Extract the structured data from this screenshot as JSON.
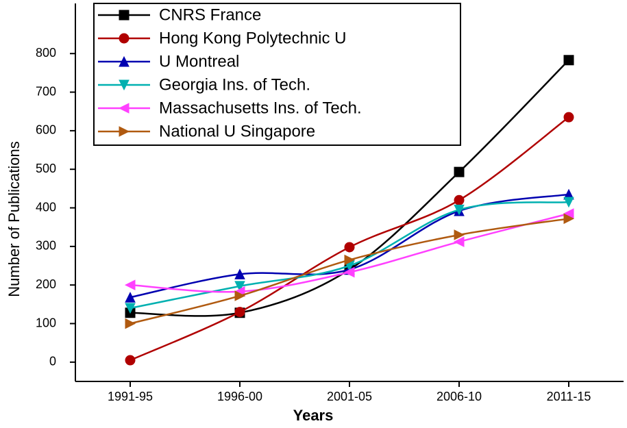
{
  "chart_data": {
    "type": "line",
    "x_label": "Years",
    "y_label": "Number of Publications",
    "categories": [
      "1991-95",
      "1996-00",
      "2001-05",
      "2006-10",
      "2011-15"
    ],
    "series": [
      {
        "name": "CNRS France",
        "color": "#000000",
        "marker": "square",
        "values": [
          128,
          128,
          240,
          493,
          783
        ]
      },
      {
        "name": "Hong Kong Polytechnic U",
        "color": "#b00000",
        "marker": "circle",
        "values": [
          5,
          130,
          298,
          420,
          635
        ]
      },
      {
        "name": "U Montreal",
        "color": "#0000b0",
        "marker": "triangle-up",
        "values": [
          168,
          228,
          240,
          392,
          435
        ]
      },
      {
        "name": "Georgia Ins. of Tech.",
        "color": "#00b0b0",
        "marker": "triangle-down",
        "values": [
          140,
          197,
          250,
          395,
          415
        ]
      },
      {
        "name": "Massachusetts Ins. of Tech.",
        "color": "#ff40ff",
        "marker": "triangle-left",
        "values": [
          200,
          183,
          233,
          312,
          385
        ]
      },
      {
        "name": "National U Singapore",
        "color": "#b05a10",
        "marker": "triangle-right",
        "values": [
          100,
          172,
          265,
          330,
          372
        ]
      }
    ],
    "ylim": [
      -50,
      930
    ],
    "yticks": [
      0,
      100,
      200,
      300,
      400,
      500,
      600,
      700,
      800
    ],
    "smooth": true,
    "legend": "top-left"
  }
}
